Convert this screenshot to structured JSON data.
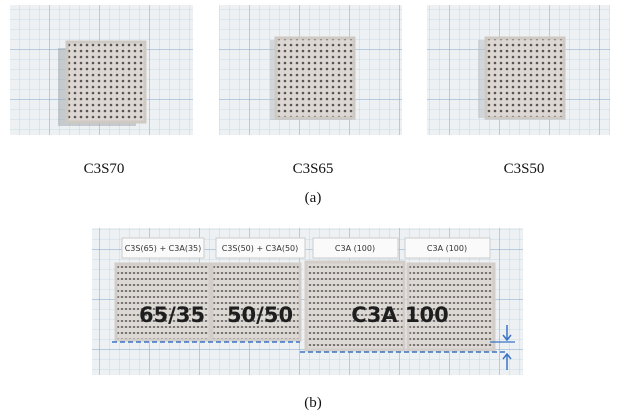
{
  "figure_a": {
    "panels": [
      {
        "caption": "C3S70"
      },
      {
        "caption": "C3S65"
      },
      {
        "caption": "C3S50"
      }
    ],
    "label": "(a)"
  },
  "figure_b": {
    "tags": [
      "C3S(65) + C3A(35)",
      "C3S(50) + C3A(50)",
      "C3A (100)",
      "C3A (100)"
    ],
    "overlays": [
      "65/35",
      "50/50",
      "C3A 100"
    ],
    "label": "(b)"
  }
}
